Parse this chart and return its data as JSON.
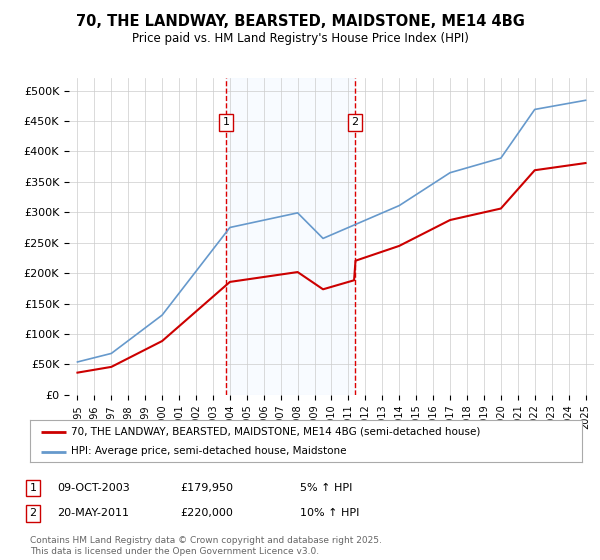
{
  "title_line1": "70, THE LANDWAY, BEARSTED, MAIDSTONE, ME14 4BG",
  "title_line2": "Price paid vs. HM Land Registry's House Price Index (HPI)",
  "yticks": [
    0,
    50000,
    100000,
    150000,
    200000,
    250000,
    300000,
    350000,
    400000,
    450000,
    500000
  ],
  "ytick_labels": [
    "£0",
    "£50K",
    "£100K",
    "£150K",
    "£200K",
    "£250K",
    "£300K",
    "£350K",
    "£400K",
    "£450K",
    "£500K"
  ],
  "xmin_year": 1995,
  "xmax_year": 2025,
  "xtick_years": [
    1995,
    1996,
    1997,
    1998,
    1999,
    2000,
    2001,
    2002,
    2003,
    2004,
    2005,
    2006,
    2007,
    2008,
    2009,
    2010,
    2011,
    2012,
    2013,
    2014,
    2015,
    2016,
    2017,
    2018,
    2019,
    2020,
    2021,
    2022,
    2023,
    2024,
    2025
  ],
  "sale1_date": 2003.77,
  "sale1_price": 179950,
  "sale2_date": 2011.38,
  "sale2_price": 220000,
  "line_color_property": "#cc0000",
  "line_color_hpi": "#6699cc",
  "shade_color": "#ddeeff",
  "vline_color": "#dd0000",
  "marker_box_color": "#cc0000",
  "grid_color": "#cccccc",
  "background_color": "#ffffff",
  "legend_property": "70, THE LANDWAY, BEARSTED, MAIDSTONE, ME14 4BG (semi-detached house)",
  "legend_hpi": "HPI: Average price, semi-detached house, Maidstone",
  "footnote": "Contains HM Land Registry data © Crown copyright and database right 2025.\nThis data is licensed under the Open Government Licence v3.0.",
  "sale1_info_date": "09-OCT-2003",
  "sale1_info_price": "£179,950",
  "sale1_info_hpi": "5% ↑ HPI",
  "sale2_info_date": "20-MAY-2011",
  "sale2_info_price": "£220,000",
  "sale2_info_hpi": "10% ↑ HPI"
}
